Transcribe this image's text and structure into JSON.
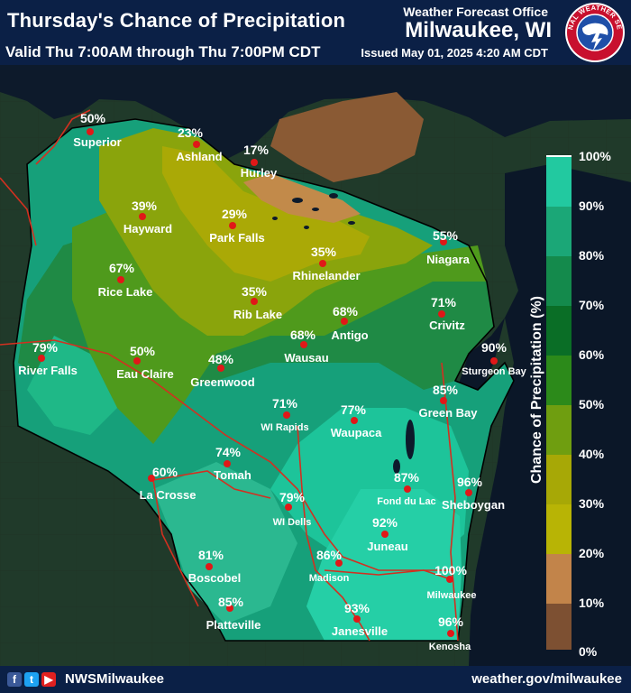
{
  "header": {
    "title": "Thursday's Chance of Precipitation",
    "valid": "Valid Thu 7:00AM through Thu 7:00PM CDT",
    "office": "Weather Forecast Office",
    "city": "Milwaukee, WI",
    "issued": "Issued May 01, 2025 4:20 AM CDT",
    "logo_text": "NATIONAL WEATHER SERVICE"
  },
  "legend": {
    "title": "Chance of Precipitation (%)",
    "ticks": [
      "100%",
      "90%",
      "80%",
      "70%",
      "60%",
      "50%",
      "40%",
      "30%",
      "20%",
      "10%",
      "0%"
    ],
    "colors": [
      "#22c9a0",
      "#1ba777",
      "#148a4c",
      "#0a6e26",
      "#2c8a1a",
      "#6f9e10",
      "#a7a806",
      "#b8b405",
      "#c2844a",
      "#7d5032"
    ]
  },
  "places": [
    {
      "name": "Superior",
      "pct": "50%"
    },
    {
      "name": "Ashland",
      "pct": "23%"
    },
    {
      "name": "Hurley",
      "pct": "17%"
    },
    {
      "name": "Hayward",
      "pct": "39%"
    },
    {
      "name": "Park Falls",
      "pct": "29%"
    },
    {
      "name": "Rhinelander",
      "pct": "35%"
    },
    {
      "name": "Niagara",
      "pct": "55%"
    },
    {
      "name": "Rice Lake",
      "pct": "67%"
    },
    {
      "name": "Rib Lake",
      "pct": "35%"
    },
    {
      "name": "Antigo",
      "pct": "68%"
    },
    {
      "name": "Crivitz",
      "pct": "71%"
    },
    {
      "name": "River Falls",
      "pct": "79%"
    },
    {
      "name": "Eau Claire",
      "pct": "50%"
    },
    {
      "name": "Wausau",
      "pct": "68%"
    },
    {
      "name": "Greenwood",
      "pct": "48%"
    },
    {
      "name": "Sturgeon Bay",
      "pct": "90%"
    },
    {
      "name": "Green Bay",
      "pct": "85%"
    },
    {
      "name": "WI Rapids",
      "pct": "71%"
    },
    {
      "name": "Waupaca",
      "pct": "77%"
    },
    {
      "name": "Tomah",
      "pct": "74%"
    },
    {
      "name": "La Crosse",
      "pct": "60%"
    },
    {
      "name": "Fond du Lac",
      "pct": "87%"
    },
    {
      "name": "Sheboygan",
      "pct": "96%"
    },
    {
      "name": "WI Dells",
      "pct": "79%"
    },
    {
      "name": "Juneau",
      "pct": "92%"
    },
    {
      "name": "Boscobel",
      "pct": "81%"
    },
    {
      "name": "Madison",
      "pct": "86%"
    },
    {
      "name": "Milwaukee",
      "pct": "100%"
    },
    {
      "name": "Platteville",
      "pct": "85%"
    },
    {
      "name": "Janesville",
      "pct": "93%"
    },
    {
      "name": "Kenosha",
      "pct": "96%"
    }
  ],
  "footer": {
    "handle": "NWSMilwaukee",
    "site": "weather.gov/milwaukee",
    "icons": [
      "facebook-icon",
      "twitter-icon",
      "youtube-icon"
    ]
  }
}
